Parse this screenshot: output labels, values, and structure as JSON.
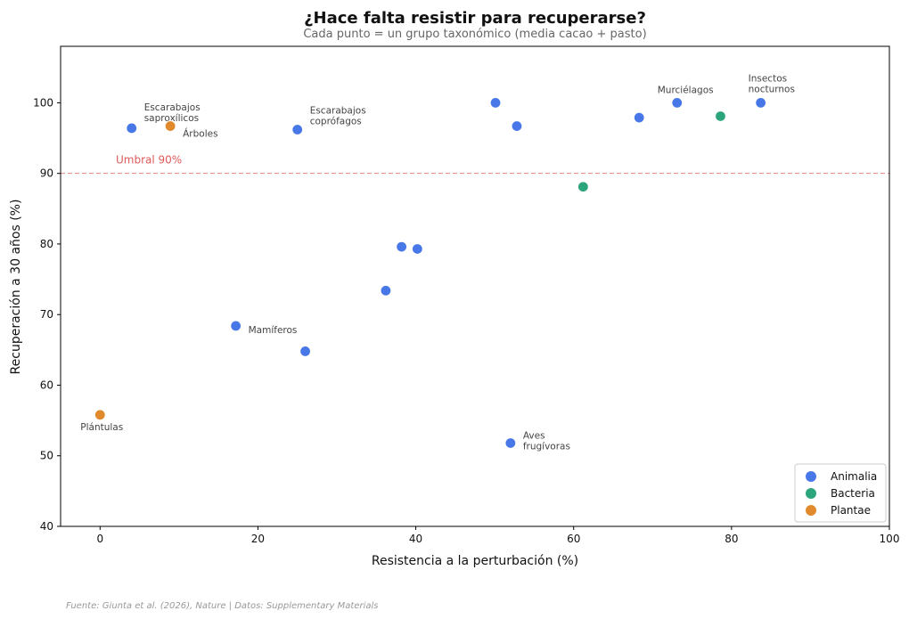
{
  "chart_data": {
    "type": "scatter",
    "title": "¿Hace falta resistir para recuperarse?",
    "subtitle": "Cada punto = un grupo taxonómico (media cacao + pasto)",
    "xlabel": "Resistencia a la perturbación (%)",
    "ylabel": "Recuperación a 30 años (%)",
    "xlim": [
      -5,
      100
    ],
    "ylim": [
      40,
      108
    ],
    "xticks": [
      0,
      20,
      40,
      60,
      80,
      100
    ],
    "yticks": [
      40,
      50,
      60,
      70,
      80,
      90,
      100
    ],
    "grid": false,
    "legend_position": "bottom-right",
    "threshold": {
      "y": 90,
      "label": "Umbral 90%",
      "color": "#e05a5a"
    },
    "series": [
      {
        "name": "Animalia",
        "color": "#4878e8",
        "points": [
          {
            "x": 4,
            "y": 96.4,
            "label": "Escarabajos\nsaproxílicos"
          },
          {
            "x": 25,
            "y": 96.2,
            "label": "Escarabajos\ncoprófagos"
          },
          {
            "x": 17.2,
            "y": 68.4,
            "label": "Mamíferos"
          },
          {
            "x": 26,
            "y": 64.8,
            "label": ""
          },
          {
            "x": 36.2,
            "y": 73.4,
            "label": ""
          },
          {
            "x": 38.2,
            "y": 79.6,
            "label": ""
          },
          {
            "x": 40.2,
            "y": 79.3,
            "label": ""
          },
          {
            "x": 50.1,
            "y": 100,
            "label": ""
          },
          {
            "x": 52.8,
            "y": 96.7,
            "label": ""
          },
          {
            "x": 52,
            "y": 51.8,
            "label": "Aves\nfrugívoras"
          },
          {
            "x": 68.3,
            "y": 97.9,
            "label": ""
          },
          {
            "x": 73.1,
            "y": 100,
            "label": "Murciélagos"
          },
          {
            "x": 83.7,
            "y": 100,
            "label": "Insectos\nnocturnos"
          }
        ]
      },
      {
        "name": "Bacteria",
        "color": "#2ca47c",
        "points": [
          {
            "x": 61.2,
            "y": 88.1,
            "label": ""
          },
          {
            "x": 78.6,
            "y": 98.1,
            "label": ""
          }
        ]
      },
      {
        "name": "Plantae",
        "color": "#e08a2c",
        "points": [
          {
            "x": 8.9,
            "y": 96.7,
            "label": "Árboles"
          },
          {
            "x": 0,
            "y": 55.8,
            "label": "Plántulas"
          }
        ]
      }
    ],
    "source": "Fuente: Giunta et al. (2026), Nature | Datos: Supplementary Materials"
  }
}
